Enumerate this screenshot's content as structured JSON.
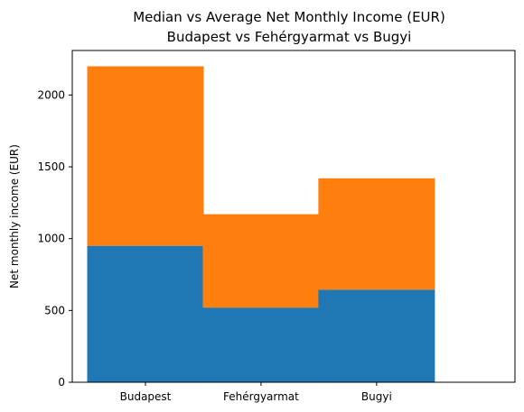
{
  "chart_data": {
    "type": "bar",
    "stacked": true,
    "title_lines": [
      "Median vs Average Net Monthly Income (EUR)",
      "Budapest vs Fehérgyarmat vs Bugyi"
    ],
    "xlabel": "",
    "ylabel": "Net monthly income (EUR)",
    "categories": [
      "Budapest",
      "Fehérgyarmat",
      "Bugyi"
    ],
    "series": [
      {
        "values": [
          950,
          520,
          645
        ],
        "color": "#1f77b4"
      },
      {
        "values": [
          1250,
          650,
          775
        ],
        "color": "#ff7f0e"
      }
    ],
    "ylim": [
      0,
      2310
    ],
    "yticks": [
      0,
      500,
      1000,
      1500,
      2000
    ],
    "ytick_labels": [
      "0",
      "500",
      "1000",
      "1500",
      "2000"
    ],
    "grid": false,
    "legend": "none"
  }
}
